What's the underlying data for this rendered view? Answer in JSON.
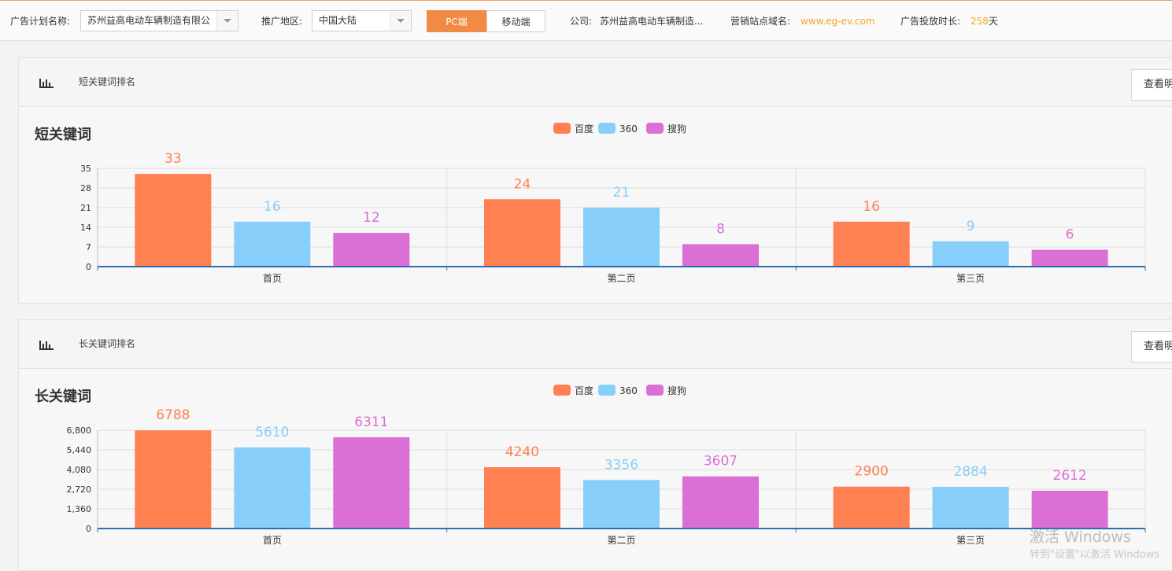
{
  "topbar": {
    "plan_label": "广告计划名称:",
    "plan_value": "苏州益高电动车辆制造有限公",
    "region_label": "推广地区:",
    "region_value": "中国大陆",
    "pc_label": "PC端",
    "mobile_label": "移动端",
    "company_label": "公司:",
    "company_value": "苏州益高电动车辆制造...",
    "domain_label": "营销站点域名:",
    "domain_value": "www.eg-ev.com",
    "duration_label": "广告投放时长:",
    "duration_value": "258",
    "duration_unit": "天"
  },
  "panels": [
    {
      "header_title": "短关键词排名",
      "view_button": "查看明",
      "chart_title": "短关键词",
      "icon": "bar-chart-icon"
    },
    {
      "header_title": "长关键词排名",
      "view_button": "查看明",
      "chart_title": "长关键词",
      "icon": "bar-chart-icon"
    }
  ],
  "watermark": {
    "line1": "激活 Windows",
    "line2": "转到\"设置\"以激活 Windows"
  },
  "colors": {
    "baidu": "#ff8050",
    "s360": "#87cefa",
    "sogou": "#da70d6",
    "axis": "#2f6ead",
    "accent": "#f18a45"
  },
  "chart_data": [
    {
      "type": "bar",
      "title": "短关键词",
      "categories": [
        "首页",
        "第二页",
        "第三页"
      ],
      "series": [
        {
          "name": "百度",
          "values": [
            33,
            24,
            16
          ]
        },
        {
          "name": "360",
          "values": [
            16,
            21,
            9
          ]
        },
        {
          "name": "搜狗",
          "values": [
            12,
            8,
            6
          ]
        }
      ],
      "yticks": [
        "0",
        "7",
        "14",
        "21",
        "28",
        "35"
      ],
      "ylim": [
        0,
        35
      ],
      "legend": "top-center",
      "grid": true
    },
    {
      "type": "bar",
      "title": "长关键词",
      "categories": [
        "首页",
        "第二页",
        "第三页"
      ],
      "series": [
        {
          "name": "百度",
          "values": [
            6788,
            4240,
            2900
          ]
        },
        {
          "name": "360",
          "values": [
            5610,
            3356,
            2884
          ]
        },
        {
          "name": "搜狗",
          "values": [
            6311,
            3607,
            2612
          ]
        }
      ],
      "yticks": [
        "0",
        "1,360",
        "2,720",
        "4,080",
        "5,440",
        "6,800"
      ],
      "ylim": [
        0,
        6800
      ],
      "legend": "top-center",
      "grid": true
    }
  ]
}
